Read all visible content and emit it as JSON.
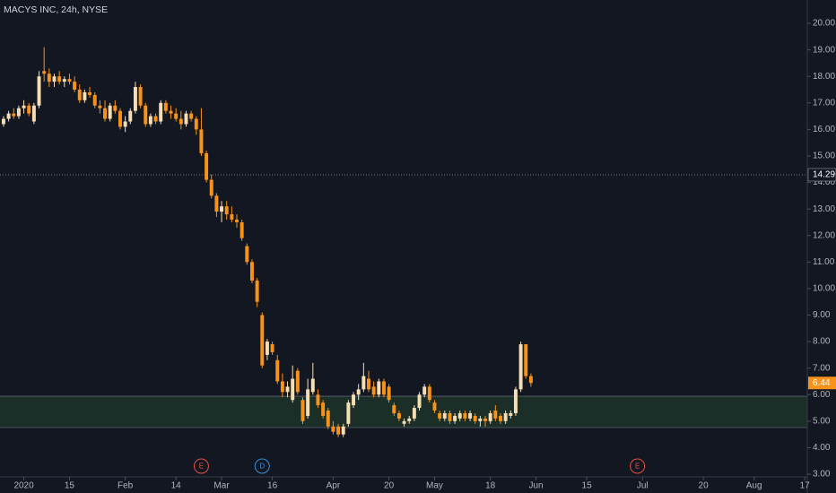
{
  "chart_data": {
    "type": "candlestick",
    "title": "MACYS INC, 24h, NYSE",
    "up_color": "#f5deb3",
    "down_color": "#f7931a",
    "open": [
      16.2,
      16.4,
      16.6,
      16.5,
      16.8,
      16.9,
      16.3,
      16.9,
      18.2,
      18.1,
      17.8,
      18.0,
      17.8,
      17.9,
      17.8,
      17.5,
      17.1,
      17.4,
      17.3,
      16.9,
      16.8,
      16.4,
      16.9,
      16.7,
      16.1,
      16.3,
      16.7,
      17.6,
      16.9,
      16.2,
      16.5,
      16.3,
      17.0,
      16.7,
      16.6,
      16.4,
      16.2,
      16.6,
      16.4,
      16.0,
      15.1,
      14.1,
      13.5,
      12.9,
      13.1,
      12.8,
      12.6,
      12.5,
      11.6,
      11.0,
      10.3,
      9.0,
      7.5,
      7.9,
      7.3,
      6.5,
      6.1,
      5.8,
      6.9,
      5.8,
      5.2,
      6.1,
      6.0,
      5.7,
      5.4,
      4.8,
      4.8,
      4.5,
      4.9,
      5.6,
      6.0,
      6.2,
      6.6,
      6.3,
      6.0,
      6.5,
      6.3,
      5.6,
      5.3,
      4.9,
      5.0,
      5.1,
      5.5,
      6.0,
      6.3,
      5.7,
      5.3,
      5.1,
      5.3,
      5.0,
      5.1,
      5.3,
      5.1,
      5.2,
      5.0,
      5.1,
      5.0,
      5.4,
      5.2,
      5.0,
      5.2,
      5.3,
      6.2,
      7.9,
      6.7
    ],
    "high": [
      16.5,
      16.7,
      16.8,
      16.9,
      17.1,
      17.0,
      17.0,
      18.2,
      19.1,
      18.3,
      18.1,
      18.2,
      18.0,
      18.1,
      18.0,
      17.7,
      17.5,
      17.6,
      17.4,
      17.1,
      17.1,
      17.0,
      17.1,
      16.8,
      16.5,
      16.8,
      17.8,
      17.7,
      17.0,
      16.6,
      16.6,
      17.1,
      17.1,
      16.9,
      16.8,
      16.7,
      16.7,
      16.7,
      16.5,
      16.8,
      15.2,
      14.3,
      13.6,
      13.3,
      13.3,
      13.1,
      12.8,
      12.6,
      11.7,
      11.1,
      10.4,
      9.1,
      8.1,
      8.0,
      7.5,
      6.8,
      6.5,
      7.1,
      7.0,
      5.9,
      6.6,
      7.2,
      6.2,
      5.8,
      5.5,
      5.0,
      4.9,
      4.9,
      5.8,
      6.1,
      6.4,
      7.2,
      6.9,
      6.5,
      6.6,
      6.6,
      6.4,
      5.7,
      5.4,
      5.1,
      5.2,
      5.6,
      6.1,
      6.4,
      6.4,
      5.8,
      5.4,
      5.4,
      5.4,
      5.3,
      5.4,
      5.4,
      5.4,
      5.3,
      5.2,
      5.2,
      5.4,
      5.6,
      5.3,
      5.4,
      5.4,
      6.3,
      8.0,
      7.9,
      6.8
    ],
    "low": [
      16.1,
      16.3,
      16.4,
      16.4,
      16.6,
      16.5,
      16.2,
      16.8,
      17.8,
      17.6,
      17.6,
      17.7,
      17.6,
      17.7,
      17.4,
      17.0,
      17.0,
      17.2,
      16.8,
      16.6,
      16.3,
      16.3,
      16.6,
      16.0,
      15.9,
      16.2,
      16.6,
      16.8,
      16.1,
      16.1,
      16.2,
      16.2,
      16.6,
      16.4,
      16.3,
      16.0,
      16.1,
      16.3,
      15.8,
      15.0,
      14.0,
      13.4,
      12.7,
      12.5,
      12.6,
      12.5,
      12.3,
      11.8,
      10.9,
      10.2,
      9.3,
      7.0,
      7.3,
      7.5,
      6.4,
      5.9,
      5.9,
      5.7,
      6.0,
      4.9,
      5.1,
      6.0,
      5.5,
      5.1,
      4.7,
      4.5,
      4.4,
      4.4,
      4.8,
      5.5,
      5.8,
      6.1,
      6.1,
      5.9,
      5.9,
      5.9,
      5.7,
      5.2,
      5.0,
      4.8,
      4.9,
      5.0,
      5.4,
      5.9,
      5.7,
      5.3,
      5.0,
      5.0,
      4.9,
      4.9,
      5.0,
      5.0,
      5.0,
      4.9,
      4.8,
      4.8,
      4.9,
      5.0,
      4.9,
      4.9,
      5.1,
      5.2,
      6.1,
      6.6,
      6.3
    ],
    "close": [
      16.4,
      16.6,
      16.5,
      16.8,
      16.9,
      16.6,
      16.9,
      18.0,
      18.1,
      17.8,
      18.0,
      17.8,
      17.9,
      17.8,
      17.5,
      17.1,
      17.4,
      17.3,
      16.9,
      16.8,
      16.4,
      16.9,
      16.7,
      16.1,
      16.3,
      16.7,
      17.6,
      16.9,
      16.2,
      16.5,
      16.3,
      17.0,
      16.7,
      16.6,
      16.4,
      16.2,
      16.6,
      16.4,
      16.0,
      15.1,
      14.1,
      13.5,
      12.9,
      13.1,
      12.8,
      12.6,
      12.5,
      11.9,
      11.0,
      10.3,
      9.5,
      7.1,
      8.0,
      7.6,
      6.5,
      6.1,
      6.3,
      6.6,
      6.1,
      5.0,
      6.2,
      6.6,
      5.6,
      5.2,
      4.8,
      4.6,
      4.5,
      4.8,
      5.7,
      6.0,
      6.2,
      6.7,
      6.2,
      6.0,
      6.5,
      6.0,
      5.8,
      5.3,
      5.1,
      5.0,
      5.1,
      5.5,
      6.0,
      6.3,
      5.8,
      5.4,
      5.1,
      5.3,
      5.0,
      5.2,
      5.3,
      5.1,
      5.3,
      5.0,
      5.1,
      5.0,
      5.3,
      5.1,
      5.0,
      5.3,
      5.3,
      6.2,
      7.9,
      6.7,
      6.44
    ],
    "xlim": [
      -0.7,
      158.5
    ],
    "xticks": [
      {
        "value": 4,
        "label": "2020"
      },
      {
        "value": 13,
        "label": "15"
      },
      {
        "value": 24,
        "label": "Feb"
      },
      {
        "value": 34,
        "label": "14"
      },
      {
        "value": 43,
        "label": "Mar"
      },
      {
        "value": 53,
        "label": "16"
      },
      {
        "value": 65,
        "label": "Apr"
      },
      {
        "value": 76,
        "label": "20"
      },
      {
        "value": 85,
        "label": "May"
      },
      {
        "value": 96,
        "label": "18"
      },
      {
        "value": 105,
        "label": "Jun"
      },
      {
        "value": 115,
        "label": "15"
      },
      {
        "value": 126,
        "label": "Jul"
      },
      {
        "value": 138,
        "label": "20"
      },
      {
        "value": 148,
        "label": "Aug"
      },
      {
        "value": 158,
        "label": "17"
      }
    ],
    "ylim": [
      2.9,
      20.88
    ],
    "yticks": [
      {
        "value": 3,
        "label": "3.00"
      },
      {
        "value": 4,
        "label": "4.00"
      },
      {
        "value": 5,
        "label": "5.00"
      },
      {
        "value": 6,
        "label": "6.00"
      },
      {
        "value": 7,
        "label": "7.00"
      },
      {
        "value": 8,
        "label": "8.00"
      },
      {
        "value": 9,
        "label": "9.00"
      },
      {
        "value": 10,
        "label": "10.00"
      },
      {
        "value": 11,
        "label": "11.00"
      },
      {
        "value": 12,
        "label": "12.00"
      },
      {
        "value": 13,
        "label": "13.00"
      },
      {
        "value": 14,
        "label": "14.00"
      },
      {
        "value": 15,
        "label": "15.00"
      },
      {
        "value": 16,
        "label": "16.00"
      },
      {
        "value": 17,
        "label": "17.00"
      },
      {
        "value": 18,
        "label": "18.00"
      },
      {
        "value": 19,
        "label": "19.00"
      },
      {
        "value": 20,
        "label": "20.00"
      }
    ],
    "reference_line": 14.29,
    "zone": [
      4.76,
      5.94
    ],
    "zone_color": "#1b2e27",
    "events": [
      {
        "label": "E",
        "x": 39,
        "color": "#e0533f"
      },
      {
        "label": "D",
        "x": 51,
        "color": "#3a8fd6"
      },
      {
        "label": "E",
        "x": 125,
        "color": "#e0533f"
      }
    ]
  }
}
